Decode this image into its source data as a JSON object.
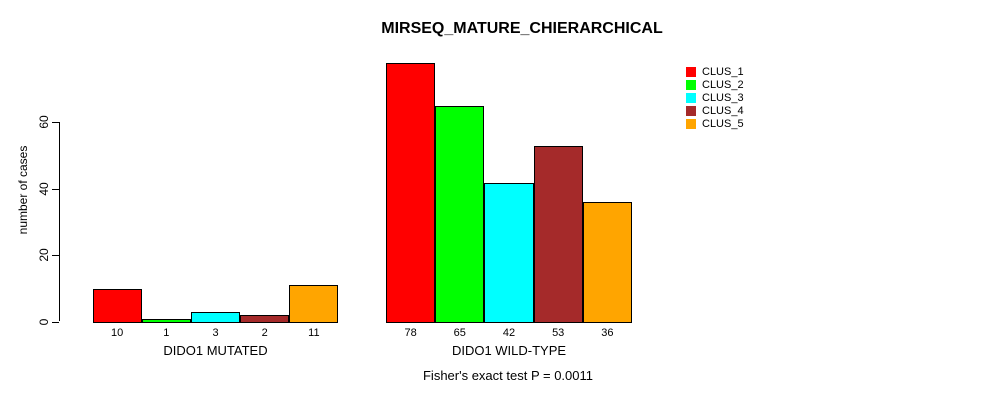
{
  "title": "MIRSEQ_MATURE_CHIERARCHICAL",
  "footer": "Fisher's exact test P = 0.0011",
  "y_axis": {
    "label": "number of cases",
    "ticks": [
      0,
      20,
      40,
      60
    ]
  },
  "legend": {
    "position": "right",
    "items": [
      {
        "label": "CLUS_1",
        "color": "#FF0000"
      },
      {
        "label": "CLUS_2",
        "color": "#00FF00"
      },
      {
        "label": "CLUS_3",
        "color": "#00FFFF"
      },
      {
        "label": "CLUS_4",
        "color": "#A52A2A"
      },
      {
        "label": "CLUS_5",
        "color": "#FFA500"
      }
    ]
  },
  "chart_data": {
    "type": "bar",
    "title": "MIRSEQ_MATURE_CHIERARCHICAL",
    "xlabel": "",
    "ylabel": "number of cases",
    "ylim": [
      0,
      78
    ],
    "yticks": [
      0,
      20,
      40,
      60
    ],
    "grid": false,
    "legend_position": "right",
    "bar_value_labels_shown": true,
    "categories": [
      "DIDO1 MUTATED",
      "DIDO1 WILD-TYPE"
    ],
    "series": [
      {
        "name": "CLUS_1",
        "color": "#FF0000",
        "values": [
          10,
          78
        ]
      },
      {
        "name": "CLUS_2",
        "color": "#00FF00",
        "values": [
          1,
          65
        ]
      },
      {
        "name": "CLUS_3",
        "color": "#00FFFF",
        "values": [
          3,
          42
        ]
      },
      {
        "name": "CLUS_4",
        "color": "#A52A2A",
        "values": [
          2,
          53
        ]
      },
      {
        "name": "CLUS_5",
        "color": "#FFA500",
        "values": [
          11,
          36
        ]
      }
    ],
    "annotation": "Fisher's exact test P = 0.0011"
  }
}
